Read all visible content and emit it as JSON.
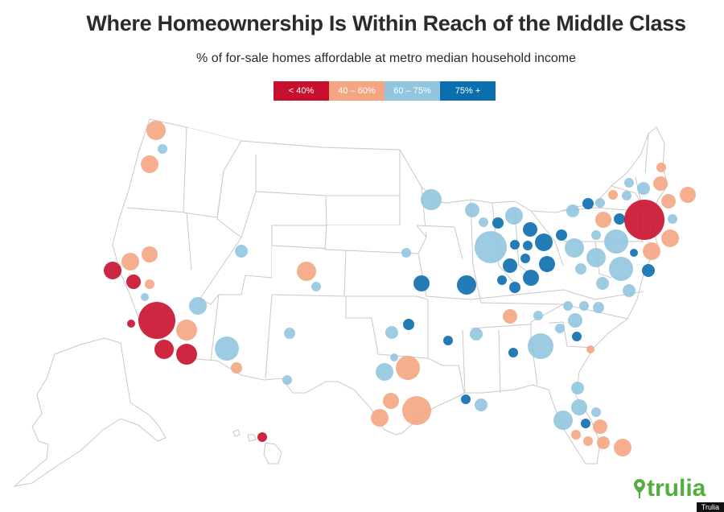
{
  "header": {
    "title": "Where Homeownership Is Within Reach of the Middle Class",
    "subtitle": "% of for-sale homes affordable at metro median household income"
  },
  "legend": [
    {
      "label": "< 40%",
      "color": "#c8102e"
    },
    {
      "label": "40 – 60%",
      "color": "#f4a582"
    },
    {
      "label": "60 – 75%",
      "color": "#92c5de"
    },
    {
      "label": "75% +",
      "color": "#0b6eae"
    }
  ],
  "brand": {
    "name": "trulia",
    "color": "#53ad3f"
  },
  "credit": "Trulia"
}
